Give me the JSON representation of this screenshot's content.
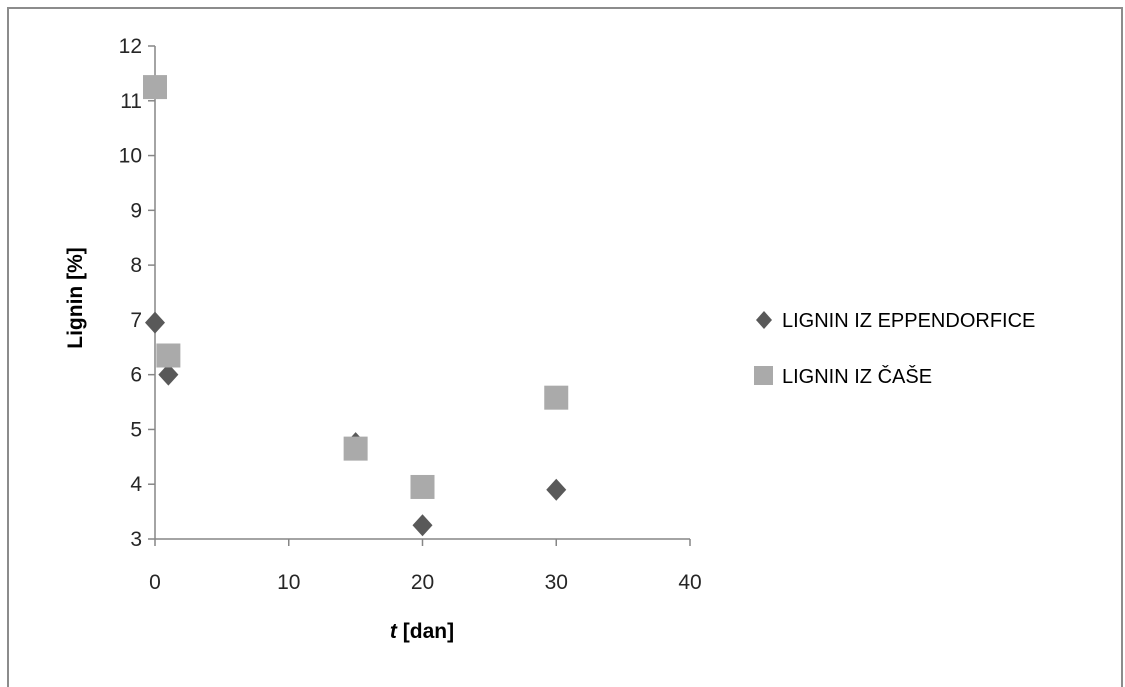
{
  "chart_data": {
    "type": "scatter",
    "title": "",
    "xlabel_prefix": "t",
    "xlabel_suffix": " [dan]",
    "ylabel": "Lignin [%]",
    "xlim": [
      0,
      40
    ],
    "ylim": [
      3,
      12
    ],
    "xticks": [
      0,
      10,
      20,
      30,
      40
    ],
    "yticks": [
      3,
      4,
      5,
      6,
      7,
      8,
      9,
      10,
      11,
      12
    ],
    "grid": false,
    "legend_position": "right",
    "series": [
      {
        "name": "LIGNIN IZ EPPENDORFICE",
        "marker": "diamond",
        "color": "#595959",
        "points": [
          {
            "x": 0,
            "y": 6.95
          },
          {
            "x": 1,
            "y": 6.0
          },
          {
            "x": 15,
            "y": 4.75
          },
          {
            "x": 20,
            "y": 3.25
          },
          {
            "x": 30,
            "y": 3.9
          }
        ]
      },
      {
        "name": "LIGNIN IZ ČAŠE",
        "marker": "square",
        "color": "#aaaaaa",
        "points": [
          {
            "x": 0,
            "y": 11.25
          },
          {
            "x": 1,
            "y": 6.35
          },
          {
            "x": 15,
            "y": 4.65
          },
          {
            "x": 20,
            "y": 3.95
          },
          {
            "x": 30,
            "y": 5.58
          }
        ]
      }
    ]
  }
}
